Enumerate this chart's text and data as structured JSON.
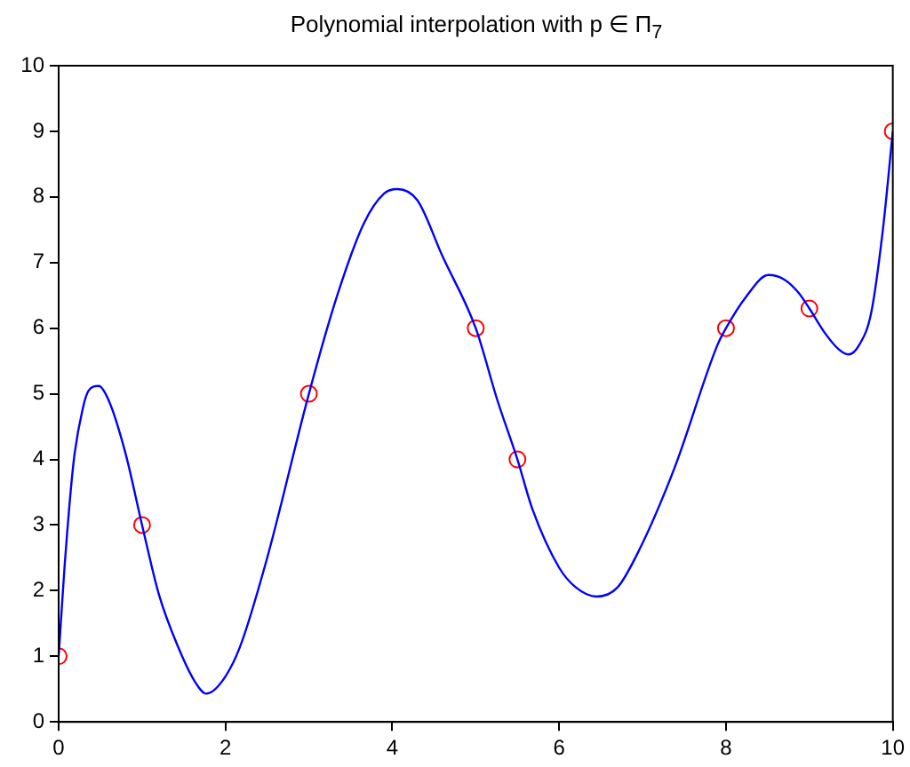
{
  "chart_data": {
    "type": "line",
    "title": "Polynomial interpolation with p ∈ Π$_{7}$",
    "xlim": [
      0,
      10
    ],
    "xticks": [
      0,
      2,
      4,
      6,
      8,
      10
    ],
    "ylim": [
      0,
      10
    ],
    "yticks": [
      0,
      1,
      2,
      3,
      4,
      5,
      6,
      7,
      8,
      9,
      10
    ],
    "grid": false,
    "legend": false,
    "series": [
      {
        "color": "#0000ff",
        "marker": "none",
        "x": [
          0,
          0.07,
          0.18,
          0.29,
          0.36,
          0.48,
          0.6,
          0.8,
          1.0,
          1.2,
          1.43,
          1.64,
          1.77,
          1.96,
          2.17,
          2.5,
          3.0,
          3.34,
          3.66,
          3.9,
          4.06,
          4.3,
          4.6,
          5.0,
          5.26,
          5.5,
          5.68,
          6.0,
          6.2,
          6.45,
          6.7,
          6.96,
          7.38,
          7.9,
          8.0,
          8.23,
          8.51,
          8.7,
          8.87,
          9.0,
          9.19,
          9.35,
          9.47,
          9.6,
          9.74,
          9.88,
          10
        ],
        "values": [
          1,
          2.35,
          3.97,
          4.78,
          5.05,
          5.12,
          4.9,
          4.1,
          3.0,
          1.95,
          1.15,
          0.6,
          0.43,
          0.62,
          1.13,
          2.5,
          5.0,
          6.5,
          7.6,
          8.05,
          8.12,
          7.95,
          7.1,
          6.0,
          4.9,
          4.0,
          3.24,
          2.35,
          2.05,
          1.91,
          2.05,
          2.62,
          3.86,
          5.75,
          6.0,
          6.46,
          6.81,
          6.74,
          6.54,
          6.3,
          5.92,
          5.68,
          5.6,
          5.75,
          6.23,
          7.49,
          9.0
        ]
      },
      {
        "type": "scatter",
        "color": "#ff0000",
        "marker": "circle",
        "x": [
          0,
          1,
          3,
          5,
          5.5,
          8,
          9,
          10
        ],
        "values": [
          1,
          3,
          5,
          6,
          4,
          6,
          6.3,
          9
        ]
      }
    ]
  }
}
